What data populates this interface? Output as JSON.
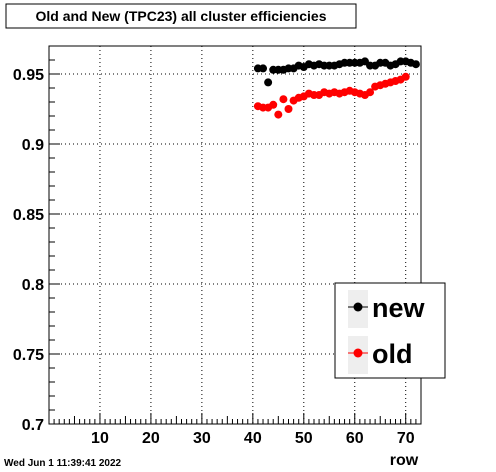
{
  "chart_data": {
    "type": "scatter",
    "title": "Old and New (TPC23) all cluster efficiencies",
    "xlabel": "row",
    "ylabel": "",
    "xlim": [
      0,
      73
    ],
    "ylim": [
      0.7,
      0.97
    ],
    "x_ticks": [
      10,
      20,
      30,
      40,
      50,
      60,
      70
    ],
    "x_tick_labels": [
      "10",
      "20",
      "30",
      "40",
      "50",
      "60",
      "70"
    ],
    "y_ticks": [
      0.7,
      0.75,
      0.8,
      0.85,
      0.9,
      0.95
    ],
    "y_tick_labels": [
      "0.7",
      "0.75",
      "0.8",
      "0.85",
      "0.9",
      "0.95"
    ],
    "grid": true,
    "legend_position": "bottom-right",
    "series": [
      {
        "name": "new",
        "color": "#000000",
        "x": [
          41,
          42,
          43,
          44,
          45,
          46,
          47,
          48,
          49,
          50,
          51,
          52,
          53,
          54,
          55,
          56,
          57,
          58,
          59,
          60,
          61,
          62,
          63,
          64,
          65,
          66,
          67,
          68,
          69,
          70,
          71,
          72
        ],
        "y": [
          0.954,
          0.954,
          0.944,
          0.953,
          0.953,
          0.953,
          0.954,
          0.954,
          0.956,
          0.955,
          0.957,
          0.956,
          0.957,
          0.956,
          0.956,
          0.956,
          0.957,
          0.958,
          0.958,
          0.958,
          0.958,
          0.959,
          0.956,
          0.956,
          0.958,
          0.958,
          0.956,
          0.957,
          0.959,
          0.959,
          0.958,
          0.957
        ]
      },
      {
        "name": "old",
        "color": "#ff0000",
        "x": [
          41,
          42,
          43,
          44,
          45,
          46,
          47,
          48,
          49,
          50,
          51,
          52,
          53,
          54,
          55,
          56,
          57,
          58,
          59,
          60,
          61,
          62,
          63,
          64,
          65,
          66,
          67,
          68,
          69,
          70
        ],
        "y": [
          0.927,
          0.926,
          0.926,
          0.928,
          0.921,
          0.932,
          0.925,
          0.931,
          0.933,
          0.934,
          0.936,
          0.935,
          0.935,
          0.937,
          0.936,
          0.937,
          0.936,
          0.937,
          0.938,
          0.937,
          0.936,
          0.935,
          0.937,
          0.941,
          0.942,
          0.943,
          0.944,
          0.945,
          0.946,
          0.948
        ]
      }
    ]
  },
  "footer": {
    "timestamp": "Wed Jun  1 11:39:41 2022"
  }
}
